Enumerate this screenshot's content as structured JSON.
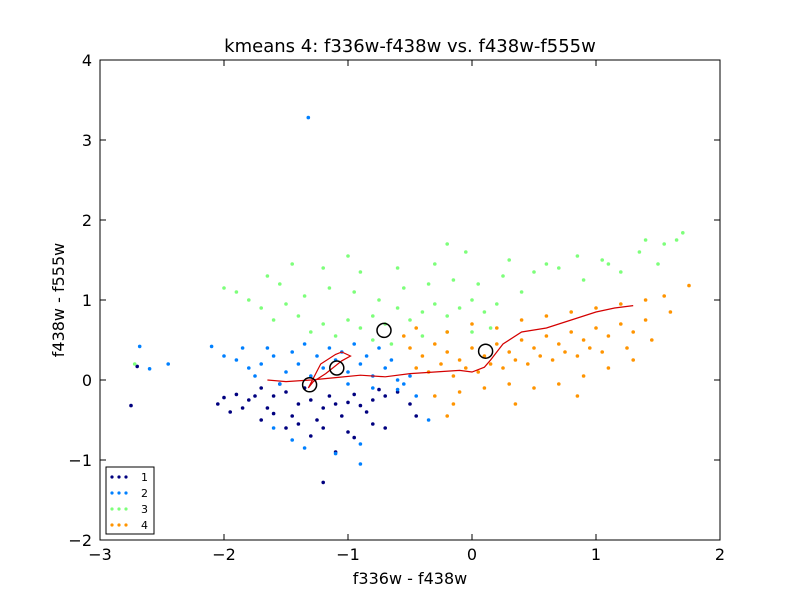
{
  "chart_data": {
    "type": "scatter",
    "title": "kmeans 4: f336w-f438w vs. f438w-f555w",
    "xlabel": "f336w - f438w",
    "ylabel": "f438w - f555w",
    "xlim": [
      -3,
      2
    ],
    "ylim": [
      -2,
      4
    ],
    "xticks": [
      -3,
      -2,
      -1,
      0,
      1,
      2
    ],
    "yticks": [
      -2,
      -1,
      0,
      1,
      2,
      3,
      4
    ],
    "xtick_labels": [
      "−3",
      "−2",
      "−1",
      "0",
      "1",
      "2"
    ],
    "ytick_labels": [
      "−2",
      "−1",
      "0",
      "1",
      "2",
      "3",
      "4"
    ],
    "grid": false,
    "legend_position": "lower-left",
    "series": [
      {
        "name": "1",
        "color": "#00007f",
        "cluster_center": [
          -1.31,
          -0.06
        ],
        "points": [
          [
            -1.6,
            -0.2
          ],
          [
            -1.5,
            -0.15
          ],
          [
            -1.4,
            -0.3
          ],
          [
            -1.3,
            -0.25
          ],
          [
            -1.2,
            -0.35
          ],
          [
            -1.1,
            -0.3
          ],
          [
            -1.0,
            -0.28
          ],
          [
            -0.9,
            -0.32
          ],
          [
            -0.8,
            -0.25
          ],
          [
            -0.7,
            -0.2
          ],
          [
            -1.7,
            -0.1
          ],
          [
            -1.75,
            -0.2
          ],
          [
            -1.65,
            -0.35
          ],
          [
            -1.45,
            -0.45
          ],
          [
            -1.25,
            -0.5
          ],
          [
            -1.05,
            -0.45
          ],
          [
            -0.85,
            -0.4
          ],
          [
            -0.6,
            -0.15
          ],
          [
            -1.55,
            -0.05
          ],
          [
            -1.35,
            -0.1
          ],
          [
            -1.15,
            -0.2
          ],
          [
            -0.95,
            -0.18
          ],
          [
            -0.75,
            -0.12
          ],
          [
            -1.8,
            -0.25
          ],
          [
            -1.9,
            -0.18
          ],
          [
            -2.0,
            -0.22
          ],
          [
            -1.85,
            -0.35
          ],
          [
            -1.6,
            -0.42
          ],
          [
            -1.4,
            -0.55
          ],
          [
            -1.2,
            -0.6
          ],
          [
            -1.3,
            -0.7
          ],
          [
            -1.0,
            -0.65
          ],
          [
            -0.8,
            -0.55
          ],
          [
            -0.7,
            -0.6
          ],
          [
            -0.5,
            -0.3
          ],
          [
            -0.45,
            -0.45
          ],
          [
            -1.5,
            -0.6
          ],
          [
            -1.7,
            -0.5
          ],
          [
            -1.95,
            -0.4
          ],
          [
            -2.05,
            -0.3
          ],
          [
            -1.1,
            -0.9
          ],
          [
            -0.95,
            -0.72
          ],
          [
            -1.2,
            -1.28
          ],
          [
            -2.75,
            -0.32
          ],
          [
            -2.7,
            0.17
          ]
        ]
      },
      {
        "name": "2",
        "color": "#0080ff",
        "cluster_center": [
          -1.09,
          0.15
        ],
        "points": [
          [
            -1.5,
            0.1
          ],
          [
            -1.4,
            0.2
          ],
          [
            -1.3,
            0.05
          ],
          [
            -1.2,
            0.15
          ],
          [
            -1.1,
            0.25
          ],
          [
            -1.0,
            0.1
          ],
          [
            -0.9,
            0.2
          ],
          [
            -0.8,
            0.05
          ],
          [
            -0.7,
            0.15
          ],
          [
            -0.6,
            0.0
          ],
          [
            -1.6,
            0.3
          ],
          [
            -1.7,
            0.2
          ],
          [
            -1.75,
            0.05
          ],
          [
            -1.55,
            -0.05
          ],
          [
            -1.45,
            0.35
          ],
          [
            -1.25,
            0.3
          ],
          [
            -1.05,
            0.35
          ],
          [
            -0.85,
            0.3
          ],
          [
            -0.65,
            0.25
          ],
          [
            -0.55,
            -0.05
          ],
          [
            -1.8,
            0.15
          ],
          [
            -1.9,
            0.25
          ],
          [
            -1.65,
            0.4
          ],
          [
            -1.35,
            0.45
          ],
          [
            -1.15,
            0.4
          ],
          [
            -0.95,
            0.45
          ],
          [
            -0.75,
            0.4
          ],
          [
            -1.0,
            -0.05
          ],
          [
            -0.8,
            -0.1
          ],
          [
            -0.6,
            -0.12
          ],
          [
            -0.5,
            0.05
          ],
          [
            -0.45,
            -0.2
          ],
          [
            -1.85,
            0.4
          ],
          [
            -2.0,
            0.3
          ],
          [
            -1.6,
            -0.6
          ],
          [
            -1.45,
            -0.75
          ],
          [
            -1.35,
            -0.85
          ],
          [
            -0.9,
            -0.8
          ],
          [
            -1.1,
            -0.92
          ],
          [
            -0.9,
            -1.05
          ],
          [
            -2.1,
            0.42
          ],
          [
            -2.45,
            0.2
          ],
          [
            -2.6,
            0.14
          ],
          [
            -2.68,
            0.42
          ],
          [
            -1.32,
            3.28
          ],
          [
            -0.35,
            -0.5
          ]
        ]
      },
      {
        "name": "3",
        "color": "#7dff7a",
        "cluster_center": [
          -0.71,
          0.62
        ],
        "points": [
          [
            -1.3,
            0.6
          ],
          [
            -1.2,
            0.7
          ],
          [
            -1.1,
            0.55
          ],
          [
            -1.0,
            0.75
          ],
          [
            -0.9,
            0.65
          ],
          [
            -0.8,
            0.8
          ],
          [
            -0.7,
            0.7
          ],
          [
            -0.6,
            0.9
          ],
          [
            -0.5,
            0.75
          ],
          [
            -0.4,
            0.85
          ],
          [
            -0.3,
            0.95
          ],
          [
            -0.2,
            0.8
          ],
          [
            -0.1,
            0.9
          ],
          [
            0.0,
            1.0
          ],
          [
            0.1,
            0.85
          ],
          [
            0.2,
            0.95
          ],
          [
            -1.4,
            0.8
          ],
          [
            -1.5,
            0.95
          ],
          [
            -1.6,
            0.75
          ],
          [
            -1.7,
            0.9
          ],
          [
            -1.8,
            1.0
          ],
          [
            -1.9,
            1.1
          ],
          [
            -1.55,
            1.2
          ],
          [
            -1.35,
            1.05
          ],
          [
            -1.15,
            1.15
          ],
          [
            -0.95,
            1.1
          ],
          [
            -0.75,
            1.0
          ],
          [
            -0.55,
            1.15
          ],
          [
            -0.35,
            1.2
          ],
          [
            -0.15,
            1.25
          ],
          [
            0.05,
            1.2
          ],
          [
            0.25,
            1.3
          ],
          [
            0.4,
            1.1
          ],
          [
            0.5,
            1.35
          ],
          [
            0.7,
            1.4
          ],
          [
            0.9,
            1.25
          ],
          [
            1.05,
            1.5
          ],
          [
            1.2,
            1.35
          ],
          [
            1.35,
            1.6
          ],
          [
            1.5,
            1.45
          ],
          [
            1.65,
            1.75
          ],
          [
            1.7,
            1.84
          ],
          [
            1.55,
            1.7
          ],
          [
            1.4,
            1.75
          ],
          [
            1.1,
            1.45
          ],
          [
            0.85,
            1.55
          ],
          [
            0.6,
            1.45
          ],
          [
            0.3,
            1.5
          ],
          [
            -0.05,
            1.6
          ],
          [
            -0.3,
            1.45
          ],
          [
            -0.6,
            1.4
          ],
          [
            -0.9,
            1.35
          ],
          [
            -1.2,
            1.4
          ],
          [
            -1.45,
            1.45
          ],
          [
            -1.65,
            1.3
          ],
          [
            -2.0,
            1.15
          ],
          [
            -0.2,
            1.7
          ],
          [
            -1.0,
            1.55
          ],
          [
            -0.8,
            0.5
          ],
          [
            -0.65,
            0.45
          ],
          [
            -0.4,
            0.55
          ],
          [
            -0.2,
            0.6
          ],
          [
            0.0,
            0.6
          ],
          [
            0.15,
            0.65
          ],
          [
            -2.72,
            0.2
          ]
        ]
      },
      {
        "name": "4",
        "color": "#ff9400",
        "cluster_center": [
          0.11,
          0.36
        ],
        "points": [
          [
            -0.5,
            0.4
          ],
          [
            -0.4,
            0.3
          ],
          [
            -0.3,
            0.45
          ],
          [
            -0.2,
            0.35
          ],
          [
            -0.1,
            0.25
          ],
          [
            0.0,
            0.4
          ],
          [
            0.1,
            0.3
          ],
          [
            0.2,
            0.45
          ],
          [
            0.3,
            0.35
          ],
          [
            0.4,
            0.5
          ],
          [
            0.5,
            0.4
          ],
          [
            0.6,
            0.55
          ],
          [
            0.7,
            0.45
          ],
          [
            0.8,
            0.6
          ],
          [
            0.9,
            0.5
          ],
          [
            1.0,
            0.65
          ],
          [
            1.1,
            0.55
          ],
          [
            1.2,
            0.7
          ],
          [
            1.3,
            0.6
          ],
          [
            1.4,
            0.75
          ],
          [
            -0.45,
            0.15
          ],
          [
            -0.35,
            0.1
          ],
          [
            -0.25,
            0.2
          ],
          [
            -0.15,
            0.05
          ],
          [
            -0.05,
            0.15
          ],
          [
            0.05,
            0.1
          ],
          [
            0.15,
            0.2
          ],
          [
            0.25,
            0.15
          ],
          [
            0.35,
            0.25
          ],
          [
            0.45,
            0.2
          ],
          [
            0.55,
            0.3
          ],
          [
            0.65,
            0.25
          ],
          [
            0.75,
            0.35
          ],
          [
            0.85,
            0.3
          ],
          [
            0.95,
            0.4
          ],
          [
            1.05,
            0.35
          ],
          [
            -0.55,
            0.55
          ],
          [
            -0.45,
            0.65
          ],
          [
            -0.2,
            0.6
          ],
          [
            0.0,
            0.7
          ],
          [
            0.2,
            0.65
          ],
          [
            0.4,
            0.75
          ],
          [
            0.6,
            0.8
          ],
          [
            0.8,
            0.85
          ],
          [
            1.0,
            0.9
          ],
          [
            1.2,
            0.95
          ],
          [
            1.4,
            1.0
          ],
          [
            1.6,
            0.85
          ],
          [
            1.75,
            1.18
          ],
          [
            1.55,
            1.05
          ],
          [
            1.3,
            0.25
          ],
          [
            1.1,
            0.15
          ],
          [
            0.9,
            0.05
          ],
          [
            0.7,
            -0.05
          ],
          [
            0.5,
            -0.1
          ],
          [
            0.3,
            -0.05
          ],
          [
            0.1,
            -0.1
          ],
          [
            -0.1,
            -0.15
          ],
          [
            -0.3,
            -0.2
          ],
          [
            -0.2,
            -0.45
          ],
          [
            0.35,
            -0.3
          ],
          [
            0.85,
            -0.2
          ],
          [
            1.25,
            0.4
          ],
          [
            1.45,
            0.5
          ],
          [
            -0.15,
            -0.3
          ]
        ]
      }
    ],
    "curves": [
      {
        "color": "#d40000",
        "points": [
          [
            -1.65,
            0.0
          ],
          [
            -1.5,
            -0.02
          ],
          [
            -1.3,
            0.0
          ],
          [
            -1.1,
            0.03
          ],
          [
            -0.9,
            0.06
          ],
          [
            -0.7,
            0.04
          ],
          [
            -0.5,
            0.08
          ],
          [
            -0.3,
            0.1
          ],
          [
            -0.1,
            0.12
          ],
          [
            0.0,
            0.1
          ],
          [
            0.1,
            0.16
          ],
          [
            0.15,
            0.25
          ],
          [
            0.25,
            0.45
          ],
          [
            0.4,
            0.6
          ],
          [
            0.6,
            0.65
          ],
          [
            0.8,
            0.75
          ],
          [
            1.0,
            0.85
          ],
          [
            1.15,
            0.9
          ],
          [
            1.3,
            0.93
          ]
        ]
      },
      {
        "color": "#d40000",
        "points": [
          [
            -1.32,
            -0.1
          ],
          [
            -1.22,
            0.2
          ],
          [
            -1.1,
            0.32
          ],
          [
            -1.05,
            0.35
          ],
          [
            -0.98,
            0.3
          ],
          [
            -1.05,
            0.24
          ],
          [
            -1.18,
            0.08
          ],
          [
            -1.28,
            -0.02
          ],
          [
            -1.32,
            -0.1
          ]
        ]
      }
    ]
  }
}
